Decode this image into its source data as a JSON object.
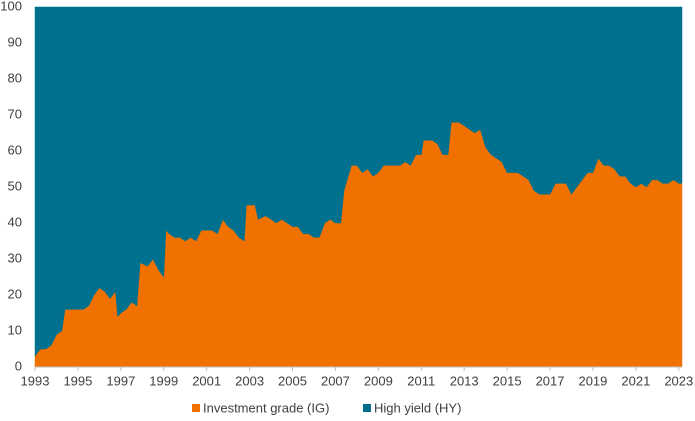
{
  "chart_data": {
    "type": "stacked_area",
    "x": [
      1993,
      1993.25,
      1993.5,
      1993.75,
      1994,
      1994.25,
      1994.4,
      1994.75,
      1995,
      1995.25,
      1995.5,
      1995.75,
      1996,
      1996.25,
      1996.5,
      1996.75,
      1996.85,
      1997,
      1997.25,
      1997.5,
      1997.75,
      1997.9,
      1998.25,
      1998.5,
      1998.75,
      1999,
      1999.1,
      1999.25,
      1999.5,
      1999.75,
      2000,
      2000.25,
      2000.5,
      2000.75,
      2001,
      2001.25,
      2001.5,
      2001.75,
      2002,
      2002.25,
      2002.5,
      2002.75,
      2002.85,
      2003.25,
      2003.4,
      2003.75,
      2004,
      2004.25,
      2004.5,
      2004.75,
      2005,
      2005.25,
      2005.5,
      2005.75,
      2006,
      2006.25,
      2006.5,
      2006.75,
      2007,
      2007.25,
      2007.4,
      2007.6,
      2007.75,
      2008,
      2008.25,
      2008.5,
      2008.75,
      2009,
      2009.25,
      2009.5,
      2009.75,
      2010,
      2010.25,
      2010.5,
      2010.75,
      2011,
      2011.1,
      2011.5,
      2011.75,
      2012,
      2012.25,
      2012.4,
      2012.75,
      2013,
      2013.25,
      2013.5,
      2013.75,
      2014,
      2014.25,
      2014.5,
      2014.75,
      2015,
      2015.25,
      2015.5,
      2015.75,
      2016,
      2016.25,
      2016.5,
      2016.75,
      2017,
      2017.25,
      2017.5,
      2017.75,
      2018,
      2018.25,
      2018.5,
      2018.75,
      2019,
      2019.25,
      2019.5,
      2019.75,
      2020,
      2020.25,
      2020.5,
      2020.75,
      2021,
      2021.25,
      2021.5,
      2021.75,
      2022,
      2022.25,
      2022.5,
      2022.75,
      2023,
      2023.15
    ],
    "series": [
      {
        "name": "Investment grade (IG)",
        "color": "#f07000",
        "values": [
          3,
          5,
          5,
          6,
          9,
          10,
          16,
          16,
          16,
          16,
          17,
          20,
          22,
          21,
          19,
          21,
          14,
          15,
          16,
          18,
          17,
          29,
          28,
          30,
          27,
          25,
          38,
          37,
          36,
          36,
          35,
          36,
          35,
          38,
          38,
          38,
          37,
          41,
          39,
          38,
          36,
          35,
          45,
          45,
          41,
          42,
          41,
          40,
          41,
          40,
          39,
          39,
          37,
          37,
          36,
          36,
          40,
          41,
          40,
          40,
          49,
          53,
          56,
          56,
          54,
          55,
          53,
          54,
          56,
          56,
          56,
          56,
          57,
          56,
          59,
          59,
          63,
          63,
          62,
          59,
          59,
          68,
          68,
          67,
          66,
          65,
          66,
          61,
          59,
          58,
          57,
          54,
          54,
          54,
          53,
          52,
          49,
          48,
          48,
          48,
          51,
          51,
          51,
          48,
          50,
          52,
          54,
          54,
          58,
          56,
          56,
          55,
          53,
          53,
          51,
          50,
          51,
          50,
          52,
          52,
          51,
          51,
          52,
          51,
          51
        ]
      },
      {
        "name": "High yield (HY)",
        "color": "#00708f",
        "values": [
          97,
          95,
          95,
          94,
          91,
          90,
          84,
          84,
          84,
          84,
          83,
          80,
          78,
          79,
          81,
          79,
          86,
          85,
          84,
          82,
          83,
          71,
          72,
          70,
          73,
          75,
          62,
          63,
          64,
          64,
          65,
          64,
          65,
          62,
          62,
          62,
          63,
          59,
          61,
          62,
          64,
          65,
          55,
          55,
          59,
          58,
          59,
          60,
          59,
          60,
          61,
          61,
          63,
          63,
          64,
          64,
          60,
          59,
          60,
          60,
          51,
          47,
          44,
          44,
          46,
          45,
          47,
          46,
          44,
          44,
          44,
          44,
          43,
          44,
          41,
          41,
          37,
          37,
          38,
          41,
          41,
          32,
          32,
          33,
          34,
          35,
          34,
          39,
          41,
          42,
          43,
          46,
          46,
          46,
          47,
          48,
          51,
          52,
          52,
          52,
          49,
          49,
          49,
          52,
          50,
          48,
          46,
          46,
          42,
          44,
          44,
          45,
          47,
          47,
          49,
          50,
          49,
          50,
          48,
          48,
          49,
          49,
          48,
          49,
          49
        ]
      }
    ],
    "xlim": [
      1993,
      2023.15
    ],
    "xticks": [
      1993,
      1995,
      1997,
      1999,
      2001,
      2003,
      2005,
      2007,
      2009,
      2011,
      2013,
      2015,
      2017,
      2019,
      2021,
      2023
    ],
    "ylim": [
      0,
      100
    ],
    "yticks": [
      0,
      10,
      20,
      30,
      40,
      50,
      60,
      70,
      80,
      90,
      100
    ],
    "legend": "bottom"
  }
}
